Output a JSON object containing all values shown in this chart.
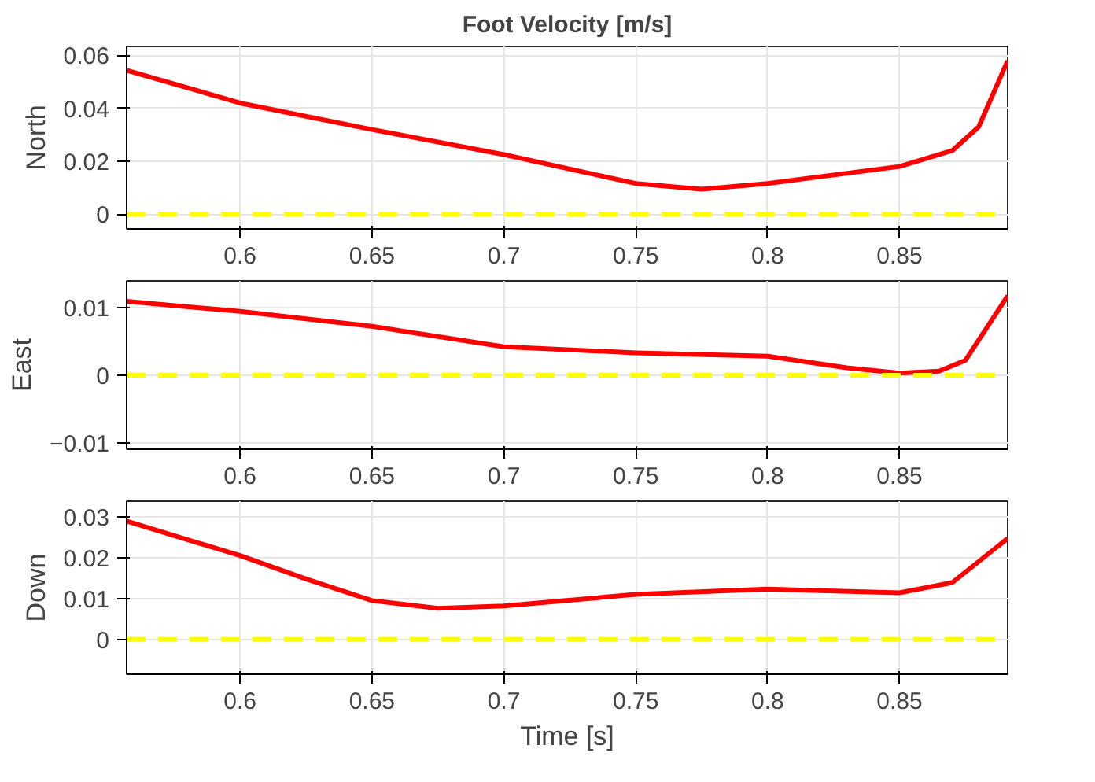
{
  "chart_data": [
    {
      "type": "line",
      "title": "Foot Velocity [m/s]",
      "ylabel": "North",
      "xlim": [
        0.557,
        0.891
      ],
      "ylim": [
        -0.0056,
        0.0634
      ],
      "xticks": [
        0.6,
        0.65,
        0.7,
        0.75,
        0.8,
        0.85
      ],
      "yticks": [
        0,
        0.02,
        0.04,
        0.06
      ],
      "grid": true,
      "x": [
        0.557,
        0.6,
        0.65,
        0.7,
        0.75,
        0.775,
        0.8,
        0.85,
        0.87,
        0.88,
        0.891
      ],
      "series": [
        {
          "color": "#ff0000",
          "values": [
            0.0544,
            0.042,
            0.032,
            0.0225,
            0.0116,
            0.0094,
            0.0116,
            0.018,
            0.024,
            0.033,
            0.058
          ]
        }
      ],
      "ref_lines": [
        {
          "axis": "y",
          "value": 0,
          "color": "#ffff00",
          "line_style": "dashed"
        }
      ]
    },
    {
      "type": "line",
      "ylabel": "East",
      "xlim": [
        0.557,
        0.891
      ],
      "ylim": [
        -0.0109,
        0.0139
      ],
      "xticks": [
        0.6,
        0.65,
        0.7,
        0.75,
        0.8,
        0.85
      ],
      "yticks": [
        -0.01,
        0,
        0.01
      ],
      "grid": true,
      "x": [
        0.557,
        0.6,
        0.65,
        0.7,
        0.75,
        0.8,
        0.83,
        0.85,
        0.865,
        0.875,
        0.891
      ],
      "series": [
        {
          "color": "#ff0000",
          "values": [
            0.0109,
            0.0094,
            0.0072,
            0.0042,
            0.0033,
            0.0028,
            0.0011,
            0.0003,
            0.0006,
            0.0022,
            0.0117
          ]
        }
      ],
      "ref_lines": [
        {
          "axis": "y",
          "value": 0,
          "color": "#ffff00",
          "line_style": "dashed"
        }
      ]
    },
    {
      "type": "line",
      "ylabel": "Down",
      "xlabel": "Time [s]",
      "xlim": [
        0.557,
        0.891
      ],
      "ylim": [
        -0.0085,
        0.0338
      ],
      "xticks": [
        0.6,
        0.65,
        0.7,
        0.75,
        0.8,
        0.85
      ],
      "yticks": [
        0,
        0.01,
        0.02,
        0.03
      ],
      "grid": true,
      "x": [
        0.557,
        0.6,
        0.625,
        0.65,
        0.675,
        0.7,
        0.75,
        0.8,
        0.85,
        0.87,
        0.891
      ],
      "series": [
        {
          "color": "#ff0000",
          "values": [
            0.0289,
            0.0205,
            0.0148,
            0.0095,
            0.0076,
            0.0082,
            0.011,
            0.0123,
            0.0114,
            0.0139,
            0.0247
          ]
        }
      ],
      "ref_lines": [
        {
          "axis": "y",
          "value": 0,
          "color": "#ffff00",
          "line_style": "dashed"
        }
      ]
    }
  ]
}
